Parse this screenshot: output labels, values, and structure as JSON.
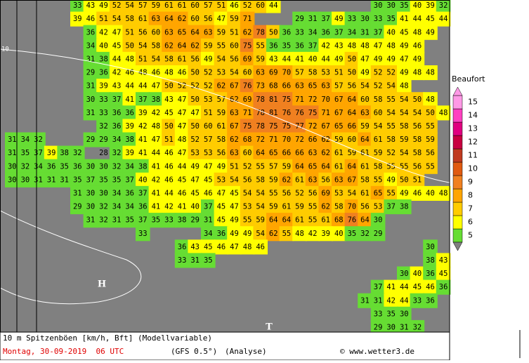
{
  "map": {
    "grid": [
      [
        null,
        null,
        null,
        null,
        null,
        33,
        43,
        49,
        52,
        54,
        57,
        59,
        61,
        61,
        60,
        57,
        51,
        46,
        52,
        60,
        44,
        null,
        null,
        null,
        null,
        null,
        null,
        null,
        30,
        30,
        35,
        40,
        39,
        32
      ],
      [
        null,
        null,
        null,
        null,
        null,
        39,
        46,
        51,
        54,
        58,
        61,
        63,
        64,
        62,
        60,
        56,
        47,
        59,
        71,
        null,
        null,
        null,
        29,
        31,
        37,
        49,
        33,
        30,
        33,
        35,
        41,
        44,
        45,
        44
      ],
      [
        null,
        null,
        null,
        null,
        null,
        null,
        36,
        42,
        47,
        51,
        56,
        60,
        63,
        65,
        64,
        63,
        59,
        51,
        62,
        78,
        50,
        36,
        33,
        34,
        36,
        37,
        34,
        31,
        37,
        40,
        45,
        48,
        49,
        null
      ],
      [
        null,
        null,
        null,
        null,
        null,
        null,
        34,
        40,
        45,
        50,
        54,
        58,
        62,
        64,
        62,
        59,
        55,
        60,
        75,
        55,
        36,
        35,
        36,
        37,
        42,
        43,
        48,
        48,
        47,
        48,
        49,
        46,
        null,
        null
      ],
      [
        null,
        null,
        null,
        null,
        null,
        null,
        31,
        38,
        44,
        48,
        51,
        54,
        58,
        61,
        56,
        49,
        54,
        56,
        69,
        59,
        43,
        44,
        41,
        40,
        44,
        49,
        50,
        47,
        49,
        49,
        47,
        49,
        null,
        null
      ],
      [
        null,
        null,
        null,
        null,
        null,
        null,
        29,
        36,
        42,
        46,
        48,
        46,
        48,
        46,
        50,
        52,
        53,
        54,
        60,
        63,
        69,
        70,
        57,
        58,
        53,
        51,
        50,
        49,
        52,
        52,
        49,
        48,
        48,
        null
      ],
      [
        null,
        null,
        null,
        null,
        null,
        null,
        31,
        39,
        43,
        44,
        44,
        47,
        50,
        52,
        52,
        52,
        62,
        67,
        76,
        73,
        68,
        66,
        63,
        65,
        63,
        57,
        56,
        54,
        52,
        54,
        48,
        null,
        null,
        null
      ],
      [
        null,
        null,
        null,
        null,
        null,
        null,
        30,
        33,
        37,
        41,
        37,
        38,
        43,
        47,
        50,
        53,
        57,
        62,
        69,
        78,
        81,
        75,
        71,
        72,
        70,
        67,
        64,
        60,
        58,
        55,
        54,
        50,
        48,
        null
      ],
      [
        null,
        null,
        null,
        null,
        null,
        null,
        31,
        33,
        36,
        36,
        39,
        42,
        45,
        47,
        47,
        51,
        59,
        63,
        71,
        78,
        81,
        76,
        76,
        75,
        71,
        67,
        64,
        63,
        60,
        54,
        54,
        54,
        50,
        48
      ],
      [
        null,
        null,
        null,
        null,
        null,
        null,
        null,
        32,
        36,
        39,
        42,
        48,
        50,
        47,
        50,
        60,
        61,
        67,
        75,
        78,
        75,
        75,
        77,
        72,
        67,
        65,
        66,
        59,
        54,
        55,
        58,
        56,
        55,
        null
      ],
      [
        31,
        34,
        32,
        null,
        null,
        null,
        29,
        29,
        34,
        38,
        41,
        47,
        51,
        48,
        52,
        57,
        58,
        62,
        68,
        72,
        71,
        70,
        72,
        66,
        62,
        59,
        60,
        64,
        61,
        58,
        59,
        58,
        59,
        null
      ],
      [
        31,
        35,
        37,
        39,
        38,
        32,
        null,
        28,
        32,
        39,
        41,
        44,
        46,
        47,
        53,
        53,
        56,
        63,
        60,
        64,
        65,
        66,
        66,
        63,
        62,
        61,
        59,
        61,
        59,
        52,
        54,
        58,
        56,
        null
      ],
      [
        30,
        32,
        34,
        36,
        35,
        36,
        30,
        30,
        32,
        34,
        38,
        41,
        46,
        44,
        49,
        47,
        49,
        51,
        52,
        55,
        57,
        59,
        64,
        65,
        64,
        61,
        64,
        61,
        58,
        55,
        55,
        56,
        55,
        null
      ],
      [
        30,
        30,
        31,
        31,
        31,
        35,
        37,
        35,
        35,
        37,
        40,
        42,
        46,
        45,
        47,
        45,
        53,
        54,
        56,
        58,
        59,
        62,
        61,
        63,
        56,
        63,
        67,
        58,
        55,
        49,
        50,
        51,
        null,
        null
      ],
      [
        null,
        null,
        null,
        null,
        null,
        31,
        30,
        30,
        34,
        36,
        37,
        41,
        44,
        46,
        45,
        46,
        47,
        45,
        54,
        54,
        55,
        56,
        52,
        56,
        69,
        53,
        54,
        61,
        65,
        55,
        49,
        46,
        40,
        48
      ],
      [
        null,
        null,
        null,
        null,
        null,
        29,
        30,
        32,
        34,
        34,
        36,
        41,
        42,
        41,
        40,
        37,
        45,
        47,
        53,
        54,
        59,
        61,
        59,
        55,
        62,
        58,
        70,
        56,
        53,
        37,
        38,
        null,
        null,
        null
      ],
      [
        null,
        null,
        null,
        null,
        null,
        null,
        31,
        32,
        31,
        35,
        37,
        35,
        33,
        38,
        29,
        31,
        45,
        49,
        55,
        59,
        64,
        64,
        61,
        55,
        61,
        68,
        76,
        64,
        30,
        null,
        null,
        null,
        null,
        null
      ],
      [
        null,
        null,
        null,
        null,
        null,
        null,
        null,
        null,
        null,
        null,
        33,
        null,
        null,
        null,
        null,
        34,
        36,
        49,
        49,
        54,
        62,
        55,
        48,
        42,
        39,
        40,
        35,
        32,
        29,
        null,
        null,
        null,
        null,
        null
      ],
      [
        null,
        null,
        null,
        null,
        null,
        null,
        null,
        null,
        null,
        null,
        null,
        null,
        null,
        36,
        43,
        45,
        46,
        47,
        48,
        46,
        null,
        null,
        null,
        null,
        null,
        null,
        null,
        null,
        null,
        null,
        null,
        null,
        30,
        null
      ],
      [
        null,
        null,
        null,
        null,
        null,
        null,
        null,
        null,
        null,
        null,
        null,
        null,
        null,
        33,
        31,
        35,
        null,
        null,
        null,
        null,
        null,
        null,
        null,
        null,
        null,
        null,
        null,
        null,
        null,
        null,
        null,
        null,
        38,
        43
      ],
      [
        null,
        null,
        null,
        null,
        null,
        null,
        null,
        null,
        null,
        null,
        null,
        null,
        null,
        null,
        null,
        null,
        null,
        null,
        null,
        null,
        null,
        null,
        null,
        null,
        null,
        null,
        null,
        null,
        null,
        null,
        30,
        40,
        36,
        45
      ],
      [
        null,
        null,
        null,
        null,
        null,
        null,
        null,
        null,
        null,
        null,
        null,
        null,
        null,
        null,
        null,
        null,
        null,
        null,
        null,
        null,
        null,
        null,
        null,
        null,
        null,
        null,
        null,
        null,
        37,
        41,
        44,
        45,
        46,
        36
      ],
      [
        null,
        null,
        null,
        null,
        null,
        null,
        null,
        null,
        null,
        null,
        null,
        null,
        null,
        null,
        null,
        null,
        null,
        null,
        null,
        null,
        null,
        null,
        null,
        null,
        null,
        null,
        null,
        31,
        31,
        42,
        44,
        33,
        36,
        null
      ],
      [
        null,
        null,
        null,
        null,
        null,
        null,
        null,
        null,
        null,
        null,
        null,
        null,
        null,
        null,
        null,
        null,
        null,
        null,
        null,
        null,
        null,
        null,
        null,
        null,
        null,
        null,
        null,
        null,
        33,
        35,
        30,
        null,
        null,
        null
      ],
      [
        null,
        null,
        null,
        null,
        null,
        null,
        null,
        null,
        null,
        null,
        null,
        null,
        null,
        null,
        null,
        null,
        null,
        null,
        null,
        null,
        null,
        null,
        null,
        null,
        null,
        null,
        null,
        null,
        29,
        30,
        31,
        32,
        null,
        null
      ]
    ],
    "high": "H",
    "low": "T",
    "isobar": "10",
    "legend": {
      "title": "Beaufort",
      "levels": [
        5,
        6,
        7,
        8,
        9,
        10,
        11,
        12,
        13,
        14,
        15
      ],
      "colors": [
        "#66dd33",
        "#ffff00",
        "#ffcc00",
        "#ffa500",
        "#f08020",
        "#e05a10",
        "#c03a20",
        "#c80040",
        "#e00080",
        "#ff40c0",
        "#ff99e6"
      ]
    }
  },
  "footer": {
    "variable": "10 m Spitzenböen [km/h, Bft] (Modellvariable)",
    "date": "Montag, 30-09-2019  06 UTC",
    "model": "(GFS 0.5°)",
    "run": "(Analyse)",
    "credit": "© www.wetter3.de"
  }
}
